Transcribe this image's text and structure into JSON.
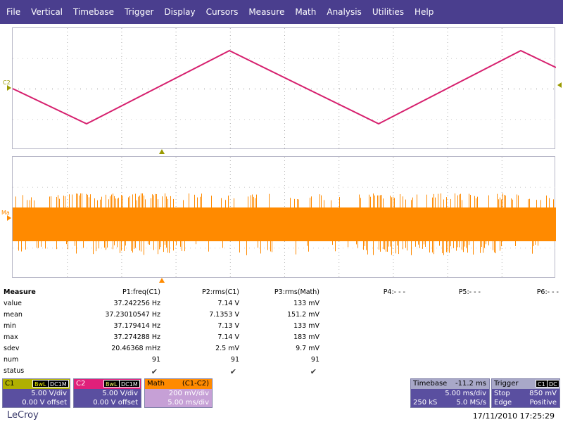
{
  "menu": [
    "File",
    "Vertical",
    "Timebase",
    "Trigger",
    "Display",
    "Cursors",
    "Measure",
    "Math",
    "Analysis",
    "Utilities",
    "Help"
  ],
  "traces": {
    "upper_label": "C2",
    "lower_label": "Ma",
    "c2_color": "#d6206e",
    "math_color": "#ff8a00",
    "marker_color_upper": "#9a9a00",
    "marker_color_lower": "#ff8a00"
  },
  "measure": {
    "title": "Measure",
    "headers": [
      "P1:freq(C1)",
      "P2:rms(C1)",
      "P3:rms(Math)",
      "P4:- - -",
      "P5:- - -",
      "P6:- - -"
    ],
    "rows": [
      {
        "label": "value",
        "cells": [
          "37.242256 Hz",
          "7.14 V",
          "133 mV"
        ]
      },
      {
        "label": "mean",
        "cells": [
          "37.23010547 Hz",
          "7.1353 V",
          "151.2 mV"
        ]
      },
      {
        "label": "min",
        "cells": [
          "37.179414 Hz",
          "7.13 V",
          "133 mV"
        ]
      },
      {
        "label": "max",
        "cells": [
          "37.274288 Hz",
          "7.14 V",
          "183 mV"
        ]
      },
      {
        "label": "sdev",
        "cells": [
          "20.46368 mHz",
          "2.5 mV",
          "9.7 mV"
        ]
      },
      {
        "label": "num",
        "cells": [
          "91",
          "91",
          "91"
        ]
      },
      {
        "label": "status",
        "cells": [
          "✔",
          "✔",
          "✔"
        ]
      }
    ]
  },
  "channels": {
    "c1": {
      "name": "C1",
      "tag1": "BwL",
      "tag2": "DC1M",
      "vdiv": "5.00 V/div",
      "offset": "0.00 V offset",
      "color": "#b0b000"
    },
    "c2": {
      "name": "C2",
      "tag1": "BwL",
      "tag2": "DC1M",
      "vdiv": "5.00 V/div",
      "offset": "0.00 V offset",
      "color": "#e0207a"
    },
    "math": {
      "name": "Math",
      "expr": "(C1-C2)",
      "vdiv": "200 mV/div",
      "tdiv": "5.00 ms/div",
      "color": "#ff8a00"
    }
  },
  "timebase": {
    "label": "Timebase",
    "delay": "-11.2 ms",
    "tdiv": "5.00 ms/div",
    "samples": "250 kS",
    "rate": "5.0 MS/s"
  },
  "trigger": {
    "label": "Trigger",
    "tag1": "C1",
    "tag2": "DC",
    "mode": "Stop",
    "level": "850 mV",
    "type": "Edge",
    "slope": "Positive"
  },
  "brand": "LeCroy",
  "timestamp": "17/11/2010 17:25:29"
}
